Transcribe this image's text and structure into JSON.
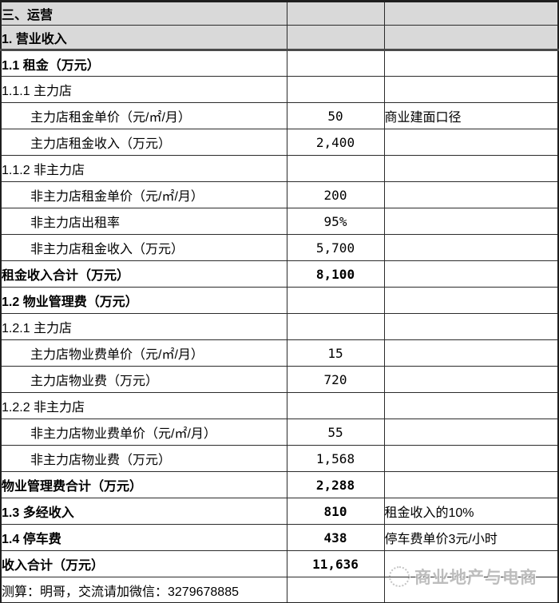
{
  "sheet": {
    "title_row": "三、运营",
    "rows": [
      {
        "label": "三、运营",
        "value": "",
        "note": "",
        "gray": true,
        "bold": true
      },
      {
        "label": "1.  营业收入",
        "value": "",
        "note": "",
        "gray": true,
        "bold": true
      },
      {
        "label": "1.1  租金（万元）",
        "value": "",
        "note": "",
        "bold": true
      },
      {
        "label": "1.1.1  主力店",
        "value": "",
        "note": ""
      },
      {
        "label": "主力店租金单价（元/㎡/月）",
        "value": "50",
        "note": "商业建面口径",
        "indent": true
      },
      {
        "label": "主力店租金收入（万元）",
        "value": "2,400",
        "note": "",
        "indent": true
      },
      {
        "label": "1.1.2  非主力店",
        "value": "",
        "note": ""
      },
      {
        "label": "非主力店租金单价（元/㎡/月）",
        "value": "200",
        "note": "",
        "indent": true
      },
      {
        "label": "非主力店出租率",
        "value": "95%",
        "note": "",
        "indent": true
      },
      {
        "label": "非主力店租金收入（万元）",
        "value": "5,700",
        "note": "",
        "indent": true
      },
      {
        "label": "租金收入合计（万元）",
        "value": "8,100",
        "note": "",
        "bold": true
      },
      {
        "label": "1.2  物业管理费（万元）",
        "value": "",
        "note": "",
        "bold": true
      },
      {
        "label": "1.2.1  主力店",
        "value": "",
        "note": ""
      },
      {
        "label": "主力店物业费单价（元/㎡/月）",
        "value": "15",
        "note": "",
        "indent": true
      },
      {
        "label": "主力店物业费（万元）",
        "value": "720",
        "note": "",
        "indent": true
      },
      {
        "label": "1.2.2  非主力店",
        "value": "",
        "note": ""
      },
      {
        "label": "非主力店物业费单价（元/㎡/月）",
        "value": "55",
        "note": "",
        "indent": true
      },
      {
        "label": "非主力店物业费（万元）",
        "value": "1,568",
        "note": "",
        "indent": true
      },
      {
        "label": "物业管理费合计（万元）",
        "value": "2,288",
        "note": "",
        "bold": true
      },
      {
        "label": "1.3  多经收入",
        "value": "810",
        "note": "租金收入的10%",
        "bold": true
      },
      {
        "label": "1.4  停车费",
        "value": "438",
        "note": "停车费单价3元/小时",
        "bold": true
      },
      {
        "label": "收入合计（万元）",
        "value": "11,636",
        "note": "",
        "bold": true
      },
      {
        "label": "测算：明哥，交流请加微信：3279678885",
        "value": "",
        "note": ""
      }
    ]
  },
  "watermark": {
    "text": "商业地产与电商",
    "icon": "brand-logo-icon"
  },
  "colors": {
    "section_bg": "#d9d9d9",
    "border": "#2b2b2b",
    "watermark_text": "#949494"
  }
}
